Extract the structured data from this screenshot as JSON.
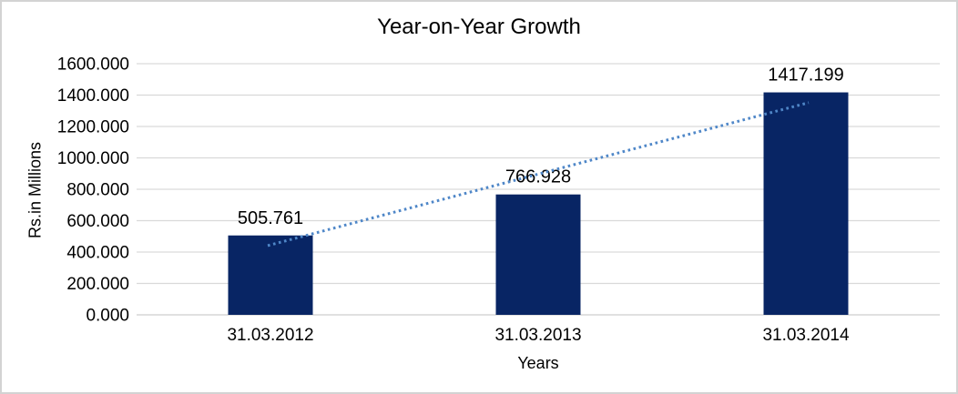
{
  "chart_data": {
    "type": "bar",
    "title": "Year-on-Year Growth",
    "xlabel": "Years",
    "ylabel": "Rs.in Millions",
    "categories": [
      "31.03.2012",
      "31.03.2013",
      "31.03.2014"
    ],
    "values": [
      505.761,
      766.928,
      1417.199
    ],
    "data_labels": [
      "505.761",
      "766.928",
      "1417.199"
    ],
    "y_ticks": [
      "0.000",
      "200.000",
      "400.000",
      "600.000",
      "800.000",
      "1000.000",
      "1200.000",
      "1400.000",
      "1600.000"
    ],
    "y_tick_values": [
      0,
      200,
      400,
      600,
      800,
      1000,
      1200,
      1400,
      1600
    ],
    "ylim": [
      0,
      1600
    ],
    "grid": "horizontal",
    "legend": "none",
    "trendline": {
      "type": "linear",
      "style": "dotted",
      "from_value": 441,
      "to_value": 1352
    },
    "colors": {
      "bar": "#082564",
      "trendline": "#4f87c8",
      "gridline": "#d9d9d9",
      "axis_line": "#d6d6d6",
      "text": "#000000",
      "frame_border": "#d3d3d3"
    }
  }
}
